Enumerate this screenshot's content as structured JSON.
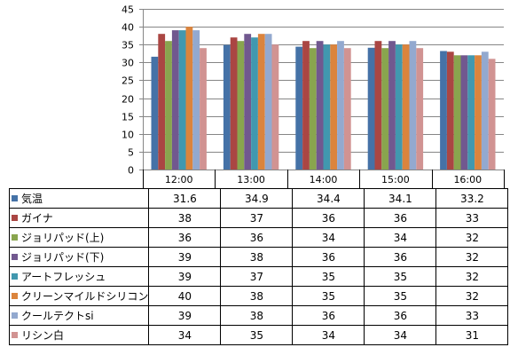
{
  "chart_data": {
    "type": "bar",
    "categories": [
      "12:00",
      "13:00",
      "14:00",
      "15:00",
      "16:00"
    ],
    "ylim": [
      0,
      45
    ],
    "yticks": [
      0,
      5,
      10,
      15,
      20,
      25,
      30,
      35,
      40,
      45
    ],
    "grid": true,
    "legend": "data table",
    "series": [
      {
        "name": "気温",
        "color": "#4572A7",
        "values": [
          31.6,
          34.9,
          34.4,
          34.1,
          33.2
        ],
        "labels": [
          "31.6",
          "34.9",
          "34.4",
          "34.1",
          "33.2"
        ]
      },
      {
        "name": "ガイナ",
        "color": "#AA4643",
        "values": [
          38,
          37,
          36,
          36,
          33
        ],
        "labels": [
          "38",
          "37",
          "36",
          "36",
          "33"
        ]
      },
      {
        "name": "ジョリパッド(上)",
        "color": "#89A54E",
        "values": [
          36,
          36,
          34,
          34,
          32
        ],
        "labels": [
          "36",
          "36",
          "34",
          "34",
          "32"
        ]
      },
      {
        "name": "ジョリパッド(下)",
        "color": "#71588F",
        "values": [
          39,
          38,
          36,
          36,
          32
        ],
        "labels": [
          "39",
          "38",
          "36",
          "36",
          "32"
        ]
      },
      {
        "name": "アートフレッシュ",
        "color": "#4198AF",
        "values": [
          39,
          37,
          35,
          35,
          32
        ],
        "labels": [
          "39",
          "37",
          "35",
          "35",
          "32"
        ]
      },
      {
        "name": "クリーンマイルドシリコン",
        "color": "#DB843D",
        "values": [
          40,
          38,
          35,
          35,
          32
        ],
        "labels": [
          "40",
          "38",
          "35",
          "35",
          "32"
        ]
      },
      {
        "name": "クールテクトsi",
        "color": "#93A9CF",
        "values": [
          39,
          38,
          36,
          36,
          33
        ],
        "labels": [
          "39",
          "38",
          "36",
          "36",
          "33"
        ]
      },
      {
        "name": "リシン白",
        "color": "#D19392",
        "values": [
          34,
          35,
          34,
          34,
          31
        ],
        "labels": [
          "34",
          "35",
          "34",
          "34",
          "31"
        ]
      }
    ]
  }
}
